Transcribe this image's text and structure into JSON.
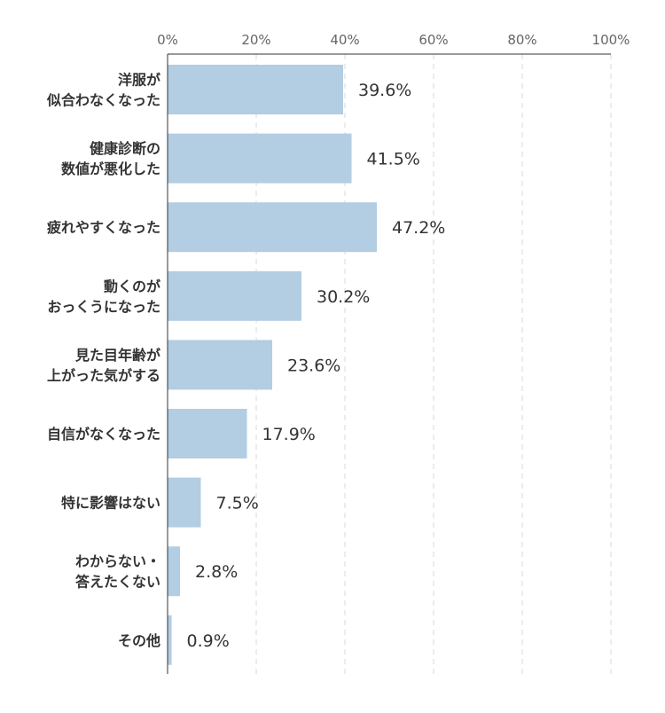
{
  "chart_data": {
    "type": "bar",
    "orientation": "horizontal",
    "categories": [
      [
        "洋服が",
        "似合わなくなった"
      ],
      [
        "健康診断の",
        "数値が悪化した"
      ],
      [
        "疲れやすくなった"
      ],
      [
        "動くのが",
        "おっくうになった"
      ],
      [
        "見た目年齢が",
        "上がった気がする"
      ],
      [
        "自信がなくなった"
      ],
      [
        "特に影響はない"
      ],
      [
        "わからない・",
        "答えたくない"
      ],
      [
        "その他"
      ]
    ],
    "values": [
      39.6,
      41.5,
      47.2,
      30.2,
      23.6,
      17.9,
      7.5,
      2.8,
      0.9
    ],
    "value_labels": [
      "39.6%",
      "41.5%",
      "47.2%",
      "30.2%",
      "23.6%",
      "17.9%",
      "7.5%",
      "2.8%",
      "0.9%"
    ],
    "x_ticks": [
      "0%",
      "20%",
      "40%",
      "60%",
      "80%",
      "100%"
    ],
    "xlim": [
      0,
      100
    ],
    "grid": true,
    "legend": "none",
    "colors": {
      "bar": "#b3cde3",
      "grid": "#d9d9d9",
      "axis": "#333333",
      "text": "#333333",
      "tick_text": "#666666"
    }
  }
}
